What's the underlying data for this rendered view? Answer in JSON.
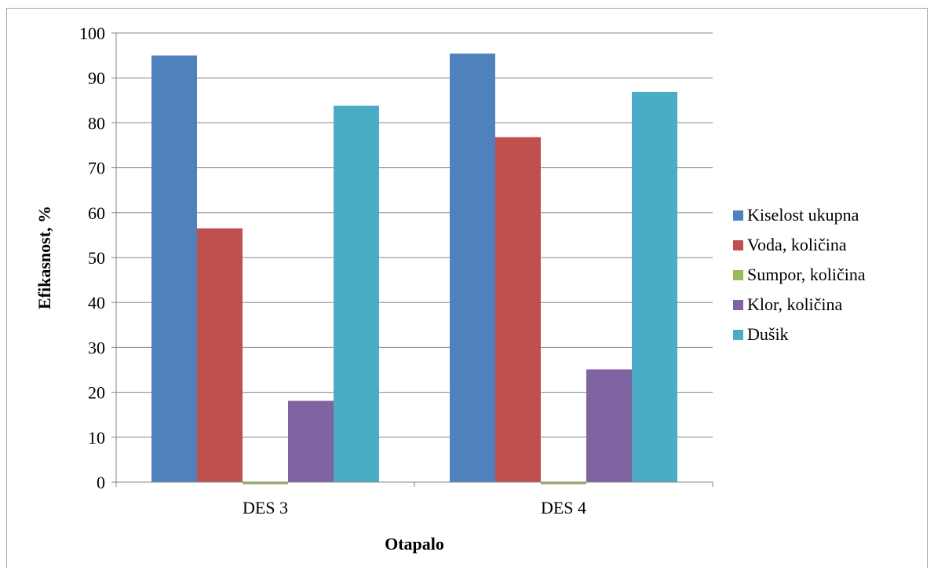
{
  "chart_data": {
    "type": "bar",
    "title": "",
    "xlabel": "Otapalo",
    "ylabel": "Efikasnost, %",
    "ylim": [
      0,
      100
    ],
    "yticks": [
      0,
      10,
      20,
      30,
      40,
      50,
      60,
      70,
      80,
      90,
      100
    ],
    "grid": true,
    "legend_position": "right",
    "categories": [
      "DES 3",
      "DES 4"
    ],
    "series": [
      {
        "name": "Kiselost ukupna",
        "color": "#4f81bd",
        "values": [
          95.0,
          95.4
        ]
      },
      {
        "name": "Voda, količina",
        "color": "#c0504d",
        "values": [
          56.5,
          76.8
        ]
      },
      {
        "name": "Sumpor, količina",
        "color": "#9bbb59",
        "values": [
          -0.5,
          -0.5
        ]
      },
      {
        "name": "Klor, količina",
        "color": "#8064a2",
        "values": [
          18.1,
          25.1
        ]
      },
      {
        "name": "Dušik",
        "color": "#4bacc6",
        "values": [
          83.8,
          86.9
        ]
      }
    ]
  }
}
